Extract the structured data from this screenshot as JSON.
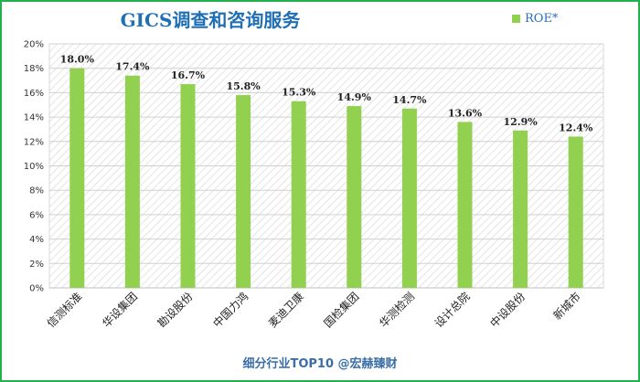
{
  "title": "GICS调查和咨询服务",
  "footer": "细分行业TOP10 @宏赫臻财",
  "colors": {
    "bar": "#92d050",
    "border": "#22b14c",
    "title": "#1f6fb5",
    "footer": "#3a6ea5",
    "legend_text": "#2f6eb5"
  },
  "chart_data": {
    "type": "bar",
    "categories": [
      "信测标准",
      "华设集团",
      "勘设股份",
      "中国力鸿",
      "麦迪卫康",
      "国检集团",
      "华测检测",
      "设计总院",
      "中设股份",
      "新城市"
    ],
    "series": [
      {
        "name": "ROE*",
        "values": [
          18.0,
          17.4,
          16.7,
          15.8,
          15.3,
          14.9,
          14.7,
          13.6,
          12.9,
          12.4
        ]
      }
    ],
    "data_labels": [
      "18.0%",
      "17.4%",
      "16.7%",
      "15.8%",
      "15.3%",
      "14.9%",
      "14.7%",
      "13.6%",
      "12.9%",
      "12.4%"
    ],
    "yticks": [
      "0%",
      "2%",
      "4%",
      "6%",
      "8%",
      "10%",
      "12%",
      "14%",
      "16%",
      "18%",
      "20%"
    ],
    "ylim": [
      0,
      20
    ],
    "title": "GICS调查和咨询服务",
    "xlabel": "",
    "ylabel": "",
    "legend": "top-right",
    "grid": true,
    "plot_background": "diagonal-hatch"
  }
}
